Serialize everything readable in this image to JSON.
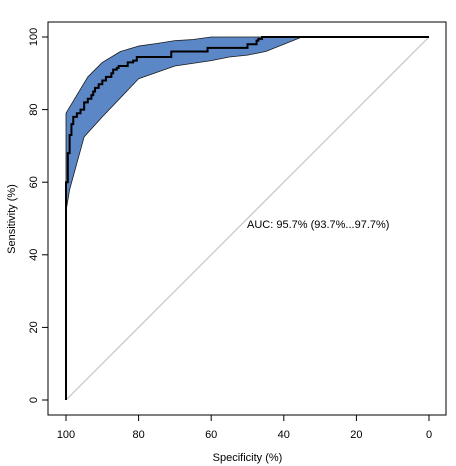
{
  "chart_data": {
    "type": "line",
    "title": "",
    "xlabel": "Specificity (%)",
    "ylabel": "Sensitivity (%)",
    "xlim": [
      100,
      0
    ],
    "ylim": [
      0,
      100
    ],
    "x_reversed": true,
    "x_ticks": [
      100,
      80,
      60,
      40,
      20,
      0
    ],
    "y_ticks": [
      0,
      20,
      40,
      60,
      80,
      100
    ],
    "grid": false,
    "annotation": "AUC: 95.7% (93.7%...97.7%)",
    "colors": {
      "band_fill": "#5b87c7",
      "band_edge": "#1a1a1a",
      "roc_line": "#000000",
      "diagonal": "#bdbdbd"
    },
    "reference_line": {
      "x": [
        100,
        0
      ],
      "y": [
        0,
        100
      ]
    },
    "roc_curve": {
      "x": [
        100,
        100,
        99.5,
        99.5,
        99,
        99,
        98.5,
        98.5,
        98,
        98,
        97,
        97,
        96,
        96,
        95,
        95,
        94,
        94,
        93,
        93,
        92.5,
        92.5,
        92,
        92,
        91,
        91,
        90,
        90,
        89,
        89,
        87.5,
        87.5,
        87,
        87,
        86,
        86,
        85.5,
        85.5,
        83,
        83,
        81.5,
        81.5,
        80.5,
        80.5,
        71,
        71,
        61,
        61,
        50,
        50,
        47.5,
        47.5,
        47,
        47,
        46,
        46,
        0
      ],
      "y": [
        0,
        60,
        60,
        68,
        68,
        73,
        73,
        76,
        76,
        78,
        78,
        79,
        79,
        80,
        80,
        82,
        82,
        83,
        83,
        84,
        84,
        85,
        85,
        86,
        86,
        87,
        87,
        88,
        88,
        89,
        89,
        90,
        90,
        91,
        91,
        91.5,
        91.5,
        92,
        92,
        93,
        93,
        93.5,
        93.5,
        94.5,
        94.5,
        96,
        96,
        97,
        97,
        98,
        98,
        99,
        99,
        99.5,
        99.5,
        100,
        100
      ]
    },
    "confidence_band_upper": {
      "x": [
        100,
        97,
        94,
        90,
        85,
        80,
        75,
        70,
        65,
        60,
        50,
        40,
        35
      ],
      "y": [
        79,
        84,
        89,
        93,
        96,
        97.5,
        98.2,
        99,
        99.3,
        100,
        100,
        100,
        100
      ]
    },
    "confidence_band_lower": {
      "x": [
        35,
        40,
        45,
        50,
        55,
        60,
        70,
        80,
        90,
        95,
        99,
        100
      ],
      "y": [
        100,
        98,
        96,
        95,
        94.5,
        93.5,
        92,
        88.5,
        78,
        72.5,
        58,
        52
      ]
    }
  }
}
